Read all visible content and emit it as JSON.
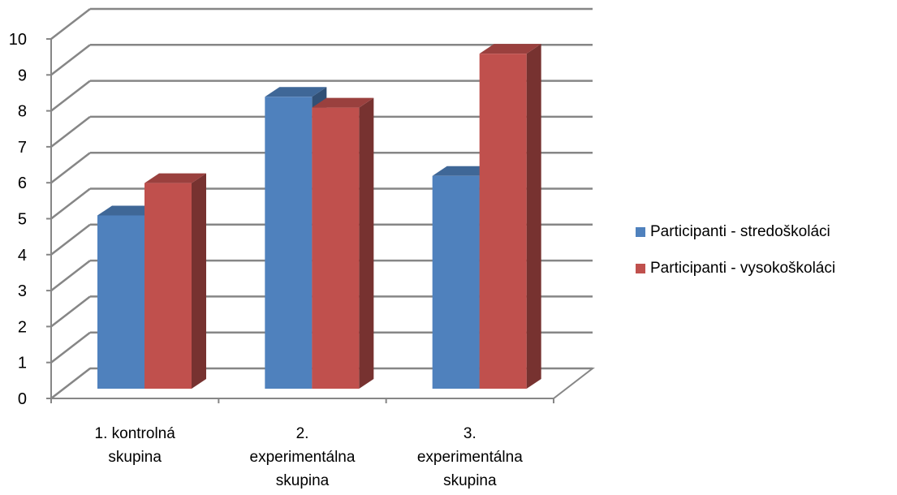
{
  "chart_data": {
    "type": "bar",
    "three_d": true,
    "categories": [
      [
        "1. kontrolná",
        "skupina"
      ],
      [
        "2.",
        "experimentálna",
        "skupina"
      ],
      [
        "3.",
        "experimentálna",
        "skupina"
      ]
    ],
    "series": [
      {
        "name": "Participanti - stredoškoláci",
        "values": [
          5.0,
          8.3,
          6.1
        ],
        "color": "#4F81BD"
      },
      {
        "name": "Participanti - vysokoškoláci",
        "values": [
          5.9,
          8.0,
          9.5
        ],
        "color": "#C0504D"
      }
    ],
    "y_ticks": [
      "0",
      "1",
      "2",
      "3",
      "4",
      "5",
      "6",
      "7",
      "8",
      "9",
      "10"
    ],
    "ylim": [
      0,
      10
    ],
    "grid": true,
    "legend_position": "right"
  }
}
